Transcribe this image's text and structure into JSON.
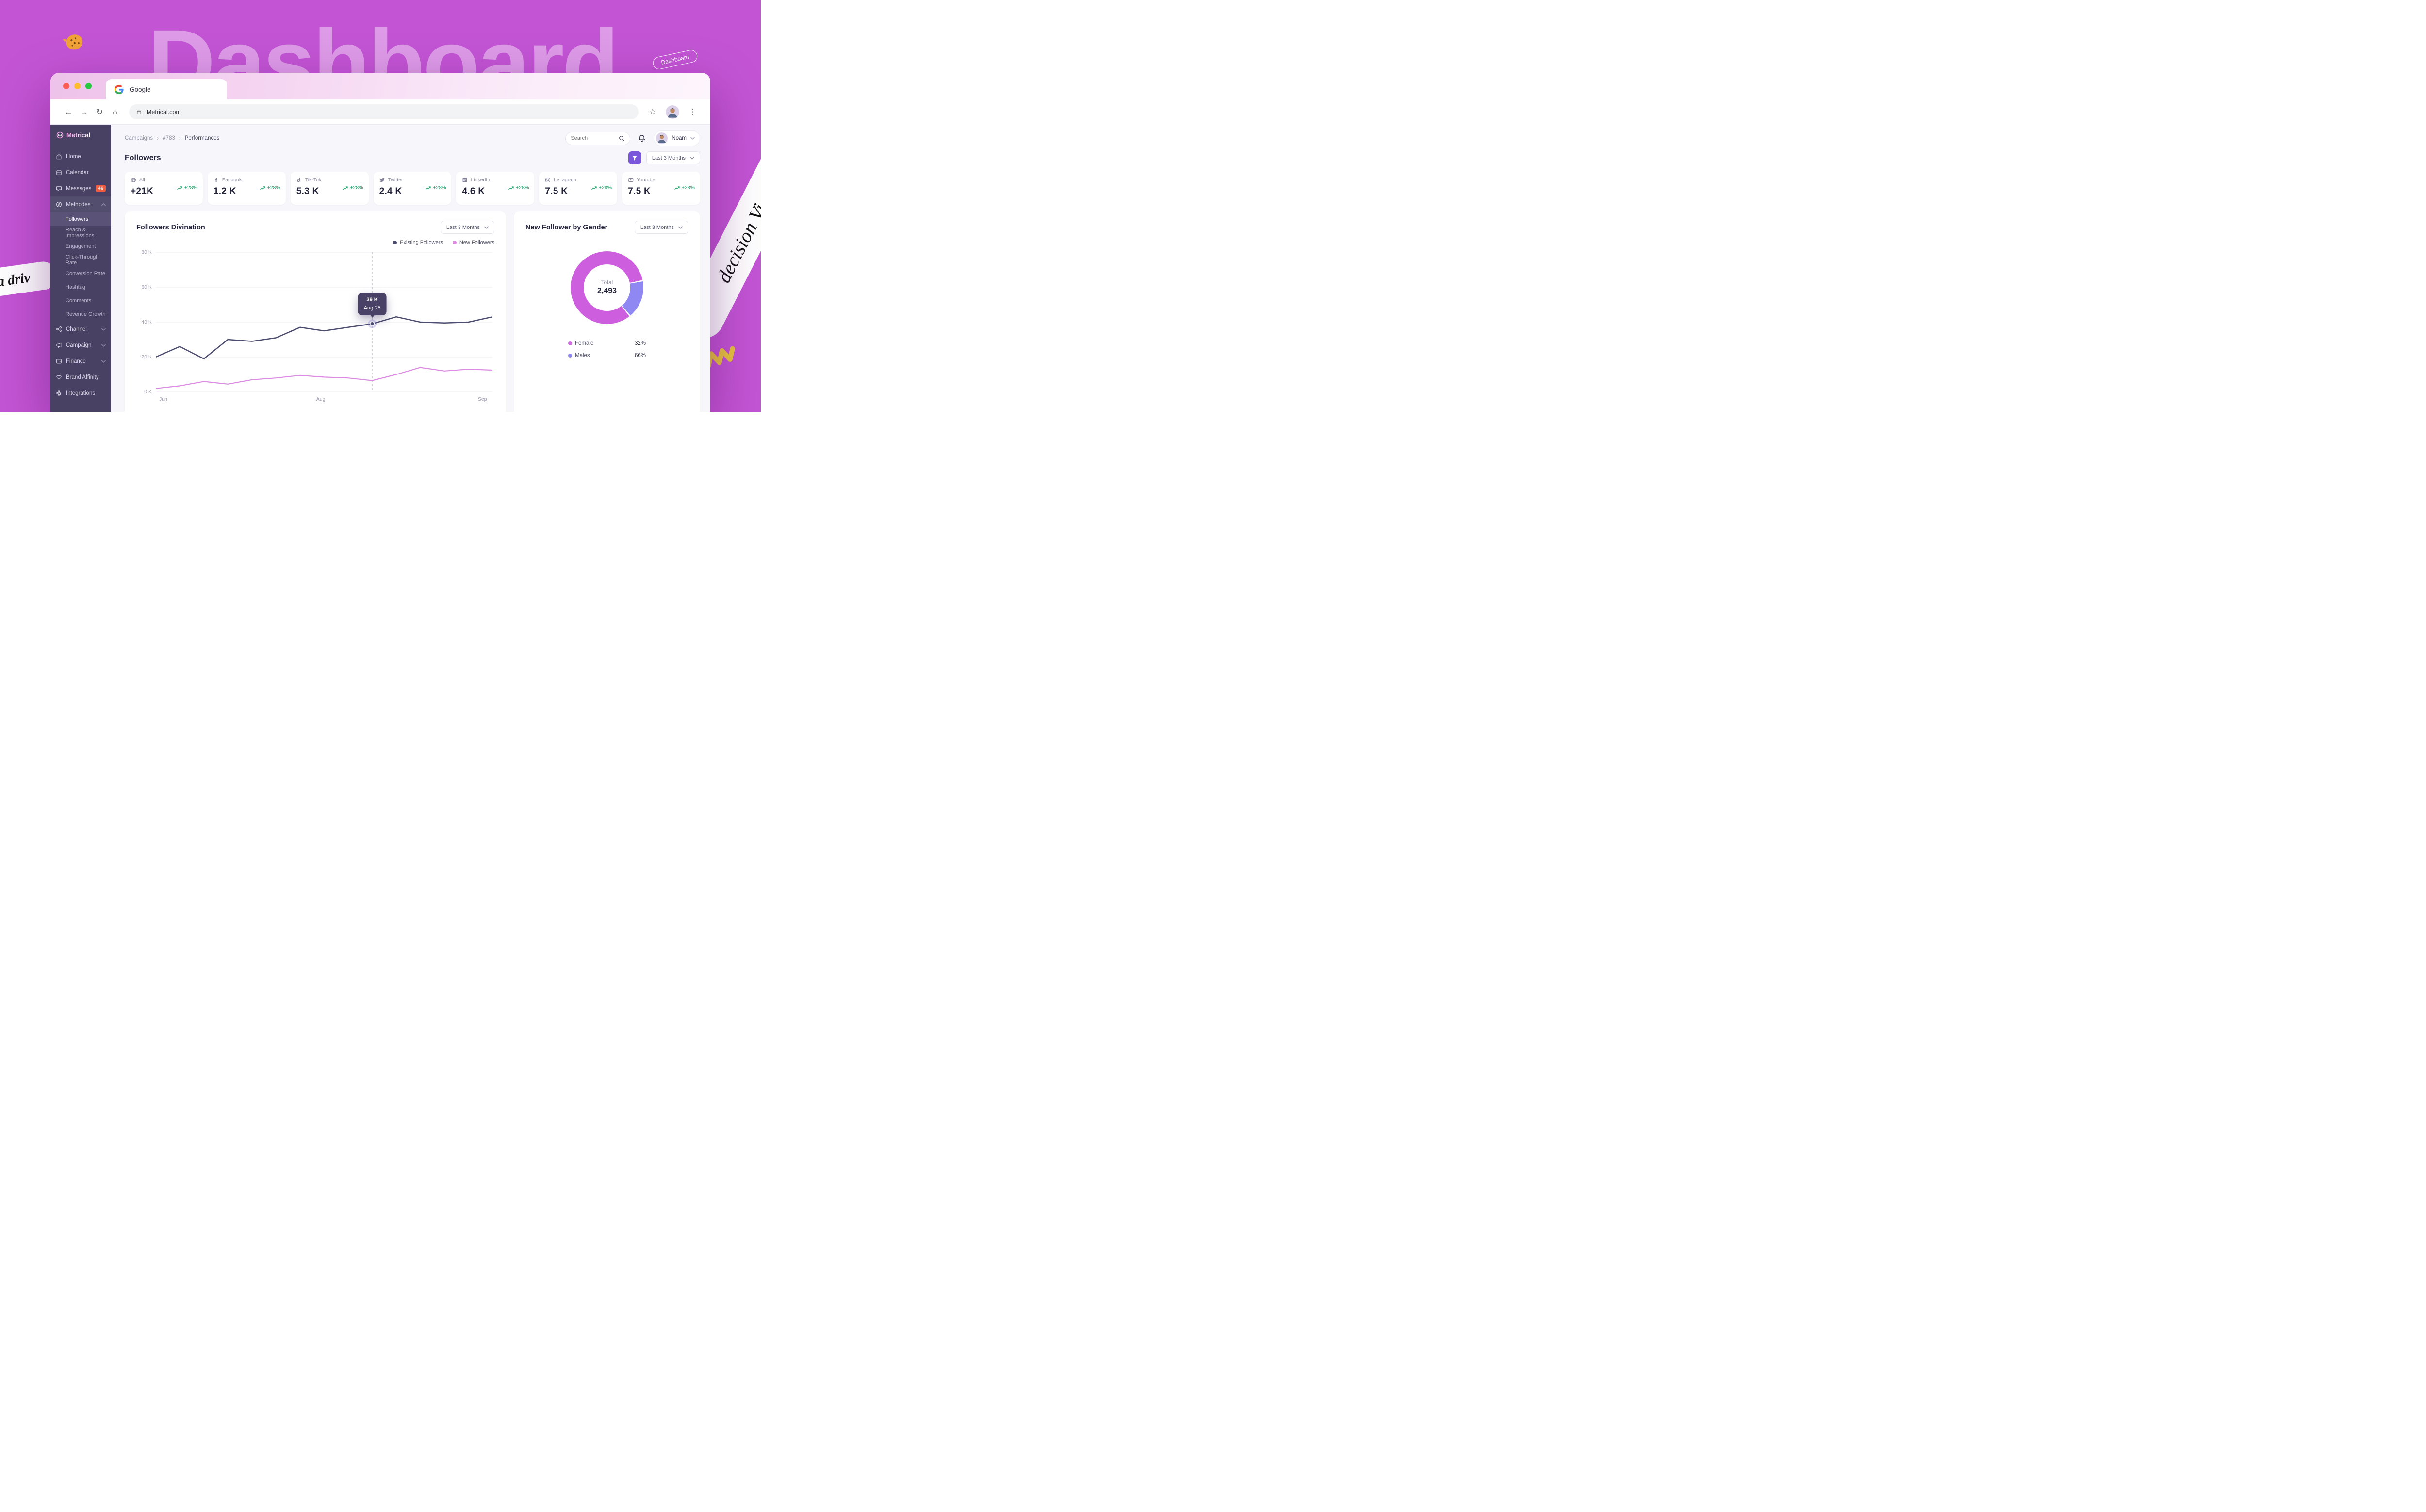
{
  "scene": {
    "bg_word": "Dashboard",
    "badge_label": "Dashboard",
    "ribbon_left_text": "ta driv",
    "ribbon_right_text": "decision Vi"
  },
  "browser": {
    "tab_title": "Google",
    "url": "Metrical.com"
  },
  "sidebar": {
    "brand": "Metrical",
    "items": [
      {
        "label": "Home",
        "icon": "home-icon"
      },
      {
        "label": "Calendar",
        "icon": "calendar-icon"
      },
      {
        "label": "Messages",
        "icon": "messages-icon",
        "badge": "46"
      },
      {
        "label": "Methodes",
        "icon": "methodes-icon",
        "chevron": "up",
        "expanded": true
      }
    ],
    "methodes_items": [
      {
        "label": "Followers",
        "active": true
      },
      {
        "label": "Reach & Impressions"
      },
      {
        "label": "Engagement"
      },
      {
        "label": "Click-Through Rate"
      },
      {
        "label": "Conversion Rate"
      },
      {
        "label": "Hashtag"
      },
      {
        "label": "Comments"
      },
      {
        "label": "Revenue Growth"
      }
    ],
    "lower_items": [
      {
        "label": "Channel",
        "icon": "channel-icon",
        "chevron": "down"
      },
      {
        "label": "Campaign",
        "icon": "campaign-icon",
        "chevron": "down"
      },
      {
        "label": "Finance",
        "icon": "finance-icon",
        "chevron": "down"
      },
      {
        "label": "Brand Affinity",
        "icon": "brand-icon"
      },
      {
        "label": "Integrations",
        "icon": "integrations-icon"
      }
    ]
  },
  "topbar": {
    "breadcrumb": [
      "Campaigns",
      "#783",
      "Performances"
    ],
    "search_placeholder": "Search",
    "user_name": "Noam"
  },
  "page": {
    "title": "Followers",
    "range_label": "Last 3 Months"
  },
  "stats": [
    {
      "label": "All",
      "value": "+21K",
      "trend": "+28%",
      "icon": "globe-icon"
    },
    {
      "label": "Facbook",
      "value": "1.2 K",
      "trend": "+28%",
      "icon": "facebook-icon"
    },
    {
      "label": "Tik-Tok",
      "value": "5.3 K",
      "trend": "+28%",
      "icon": "tiktok-icon"
    },
    {
      "label": "Twitter",
      "value": "2.4 K",
      "trend": "+28%",
      "icon": "twitter-icon"
    },
    {
      "label": "LinkedIn",
      "value": "4.6 K",
      "trend": "+28%",
      "icon": "linkedin-icon"
    },
    {
      "label": "Instagram",
      "value": "7.5 K",
      "trend": "+28%",
      "icon": "instagram-icon"
    },
    {
      "label": "Youtube",
      "value": "7.5 K",
      "trend": "+28%",
      "icon": "youtube-icon"
    }
  ],
  "chart_data": [
    {
      "type": "line",
      "title": "Followers Divination",
      "range_label": "Last 3 Months",
      "ylim": [
        0,
        80
      ],
      "yticks": [
        0,
        20,
        40,
        60,
        80
      ],
      "ytick_labels": [
        "0 K",
        "20 K",
        "40 K",
        "60 K",
        "80 K"
      ],
      "x_labels": [
        {
          "label": "Jun",
          "pos": 1
        },
        {
          "label": "Aug",
          "pos": 49
        },
        {
          "label": "Sep",
          "pos": 97
        }
      ],
      "grid": true,
      "legend_position": "top-right",
      "series": [
        {
          "name": "Existing Followers",
          "color": "#4d4d70",
          "values": [
            20,
            26,
            19,
            30,
            29,
            31,
            37,
            35,
            37,
            39,
            43,
            40,
            39.5,
            40,
            43
          ]
        },
        {
          "name": "New Followers",
          "color": "#dc8ce3",
          "values": [
            2,
            3.5,
            6,
            4.5,
            7,
            8,
            9.5,
            8.5,
            8,
            6.5,
            10,
            14,
            12,
            13,
            12.5
          ]
        }
      ],
      "tooltip": {
        "value": "39 K",
        "date": "Aug 25",
        "index": 9
      }
    },
    {
      "type": "donut",
      "title": "New Follower by Gender",
      "range_label": "Last 3 Months",
      "center_label": "Total",
      "center_value": "2,493",
      "legend": [
        {
          "label": "Female",
          "pct": "32%",
          "color": "#d26ce2"
        },
        {
          "label": "Males",
          "pct": "66%",
          "color": "#9088f2"
        }
      ],
      "colors": {
        "main": "#cd5fde",
        "secondary": "#9088f2"
      },
      "secondary_arc_deg": [
        80,
        140
      ]
    }
  ]
}
